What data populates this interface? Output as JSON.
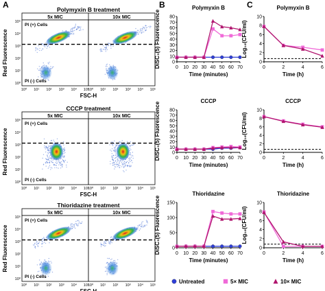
{
  "panel_letters": [
    "A",
    "B",
    "C"
  ],
  "flow": {
    "ylabel": "Red Fluorescence",
    "xlabel": "FSC-H",
    "y_ticks": [
      "10⁵",
      "10⁴",
      "10³",
      "10²",
      "10¹",
      "10⁰"
    ],
    "x_ticks": [
      "10⁰",
      "10¹",
      "10²",
      "10³",
      "10⁴",
      "10⁵"
    ],
    "gate_top_label": "PI (+) Cells",
    "gate_bottom_label": "PI (-) Cells",
    "rows": [
      {
        "title": "Polymyxin B treatment",
        "plots": [
          "5x MIC",
          "10x MIC"
        ],
        "gated_pos": [
          true,
          true
        ]
      },
      {
        "title": "CCCP treatment",
        "plots": [
          "5x MIC",
          "10x MIC"
        ],
        "gated_pos": [
          false,
          false
        ]
      },
      {
        "title": "Thioridazine treatment",
        "plots": [
          "5x MIC",
          "10x MIC"
        ],
        "gated_pos": [
          true,
          true
        ]
      }
    ]
  },
  "legend": {
    "entries": [
      {
        "label": "Untreated",
        "color": "#2f3fd8",
        "marker": "circle"
      },
      {
        "label": "5× MIC",
        "color": "#f06ad8",
        "marker": "square"
      },
      {
        "label": "10× MIC",
        "color": "#b0156e",
        "marker": "triangle"
      }
    ]
  },
  "chart_data": [
    {
      "type": "line",
      "panel": "B",
      "title": "Polymyxin B",
      "xlabel": "Time (minutes)",
      "ylabel": "DiSC₃(5) Fluorescence",
      "x": [
        0,
        10,
        20,
        30,
        40,
        50,
        60,
        70
      ],
      "xlim": [
        0,
        70
      ],
      "ylim": [
        0,
        80
      ],
      "xticks": [
        0,
        10,
        20,
        30,
        40,
        50,
        60,
        70
      ],
      "yticks": [
        0,
        10,
        20,
        30,
        40,
        50,
        60,
        70,
        80
      ],
      "series": [
        {
          "name": "Untreated",
          "values": [
            8,
            8,
            8,
            8,
            8,
            8,
            8,
            8
          ]
        },
        {
          "name": "5× MIC",
          "values": [
            8,
            8,
            8,
            8,
            58,
            46,
            46,
            48
          ]
        },
        {
          "name": "10× MIC",
          "values": [
            8,
            8,
            8,
            8,
            72,
            62,
            60,
            57
          ]
        }
      ]
    },
    {
      "type": "line",
      "panel": "C",
      "title": "Polymyxin B",
      "xlabel": "Time (h)",
      "ylabel": "Log₁₀(CFU/ml)",
      "x": [
        0,
        2,
        4,
        6
      ],
      "xlim": [
        0,
        6
      ],
      "ylim": [
        0,
        10
      ],
      "xticks": [
        0,
        2,
        4,
        6
      ],
      "yticks": [
        0,
        2,
        4,
        6,
        8,
        10
      ],
      "dashed_line": 0.7,
      "series": [
        {
          "name": "5× MIC",
          "values": [
            7.8,
            3.6,
            3.2,
            2.6
          ]
        },
        {
          "name": "10× MIC",
          "values": [
            7.8,
            3.6,
            2.8,
            1.3
          ]
        }
      ]
    },
    {
      "type": "line",
      "panel": "B",
      "title": "CCCP",
      "xlabel": "Time (minutes)",
      "ylabel": "DiSC₃(5) Fluorescence",
      "x": [
        0,
        10,
        20,
        30,
        40,
        50,
        60,
        70
      ],
      "xlim": [
        0,
        70
      ],
      "ylim": [
        0,
        80
      ],
      "xticks": [
        0,
        10,
        20,
        30,
        40,
        50,
        60,
        70
      ],
      "yticks": [
        0,
        10,
        20,
        30,
        40,
        50,
        60,
        70,
        80
      ],
      "series": [
        {
          "name": "Untreated",
          "values": [
            6,
            6,
            6,
            6,
            6,
            8,
            8,
            9
          ]
        },
        {
          "name": "5× MIC",
          "values": [
            6,
            6,
            6,
            6,
            9,
            10,
            11,
            10
          ]
        },
        {
          "name": "10× MIC",
          "values": [
            6,
            6,
            6,
            6,
            8,
            9,
            9,
            9
          ]
        }
      ]
    },
    {
      "type": "line",
      "panel": "C",
      "title": "CCCP",
      "xlabel": "Time (h)",
      "ylabel": "Log₁₀(CFU/ml)",
      "x": [
        0,
        2,
        4,
        6
      ],
      "xlim": [
        0,
        6
      ],
      "ylim": [
        0,
        10
      ],
      "xticks": [
        0,
        2,
        4,
        6
      ],
      "yticks": [
        0,
        2,
        4,
        6,
        8,
        10
      ],
      "dashed_line": 0.7,
      "series": [
        {
          "name": "5× MIC",
          "values": [
            8.4,
            7.4,
            6.6,
            6.0
          ]
        },
        {
          "name": "10× MIC",
          "values": [
            8.4,
            7.3,
            6.5,
            5.9
          ]
        }
      ]
    },
    {
      "type": "line",
      "panel": "B",
      "title": "Thioridazine",
      "xlabel": "Time (minutes)",
      "ylabel": "DiSC₃(5) Fluorescence",
      "x": [
        0,
        10,
        20,
        30,
        40,
        50,
        60,
        70
      ],
      "xlim": [
        0,
        70
      ],
      "ylim": [
        0,
        150
      ],
      "xticks": [
        0,
        10,
        20,
        30,
        40,
        50,
        60,
        70
      ],
      "yticks": [
        0,
        50,
        100,
        150
      ],
      "series": [
        {
          "name": "Untreated",
          "values": [
            5,
            5,
            5,
            5,
            5,
            5,
            5,
            5
          ]
        },
        {
          "name": "5× MIC",
          "values": [
            5,
            5,
            5,
            5,
            120,
            115,
            112,
            112
          ]
        },
        {
          "name": "10× MIC",
          "values": [
            5,
            5,
            5,
            5,
            105,
            95,
            95,
            97
          ]
        }
      ]
    },
    {
      "type": "line",
      "panel": "C",
      "title": "Thioridazine",
      "xlabel": "Time (h)",
      "ylabel": "Log₁₀(CFU/ml)",
      "x": [
        0,
        2,
        4,
        6
      ],
      "xlim": [
        0,
        6
      ],
      "ylim": [
        0,
        10
      ],
      "xticks": [
        0,
        2,
        4,
        6
      ],
      "yticks": [
        0,
        2,
        4,
        6,
        8,
        10
      ],
      "dashed_line": 0.8,
      "series": [
        {
          "name": "5× MIC",
          "values": [
            7.9,
            0.3,
            0.3,
            0.3
          ]
        },
        {
          "name": "10× MIC",
          "values": [
            7.8,
            1.3,
            0.3,
            0.3
          ]
        }
      ]
    }
  ]
}
